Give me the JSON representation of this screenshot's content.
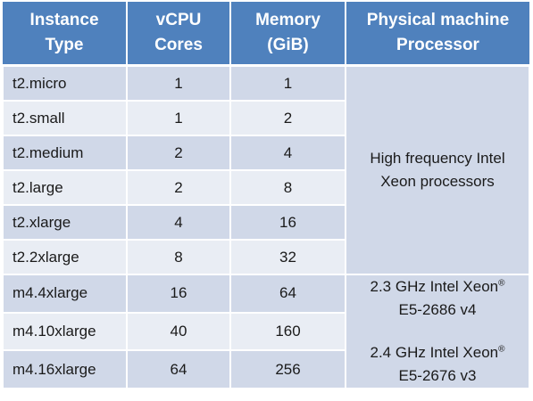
{
  "headers": {
    "type_line1": "Instance",
    "type_line2": "Type",
    "vcpu_line1": "vCPU",
    "vcpu_line2": "Cores",
    "mem_line1": "Memory",
    "mem_line2": "(GiB)",
    "proc_line1": "Physical machine",
    "proc_line2": "Processor"
  },
  "rows": [
    {
      "type": "t2.micro",
      "vcpu": "1",
      "memory": "1"
    },
    {
      "type": "t2.small",
      "vcpu": "1",
      "memory": "2"
    },
    {
      "type": "t2.medium",
      "vcpu": "2",
      "memory": "4"
    },
    {
      "type": "t2.large",
      "vcpu": "2",
      "memory": "8"
    },
    {
      "type": "t2.xlarge",
      "vcpu": "4",
      "memory": "16"
    },
    {
      "type": "t2.2xlarge",
      "vcpu": "8",
      "memory": "32"
    },
    {
      "type": "m4.4xlarge",
      "vcpu": "16",
      "memory": "64"
    },
    {
      "type": "m4.10xlarge",
      "vcpu": "40",
      "memory": "160"
    },
    {
      "type": "m4.16xlarge",
      "vcpu": "64",
      "memory": "256"
    }
  ],
  "processors": {
    "t2_line1": "High frequency Intel",
    "t2_line2": "Xeon processors",
    "m4a_line1": "2.3 GHz Intel Xeon",
    "m4a_reg": "®",
    "m4a_line2": "E5-2686 v4",
    "m4b_line1": "2.4 GHz Intel Xeon",
    "m4b_reg": "®",
    "m4b_line2": "E5-2676 v3"
  }
}
